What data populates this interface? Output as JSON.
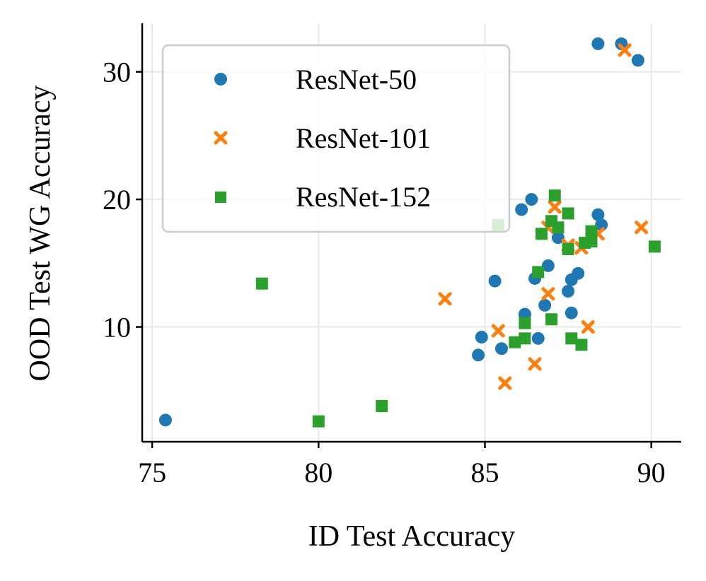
{
  "chart_data": {
    "type": "scatter",
    "title": "",
    "xlabel": "ID Test Accuracy",
    "ylabel": "OOD Test WG Accuracy",
    "xlim": [
      74.7,
      90.9
    ],
    "ylim": [
      1.0,
      33.8
    ],
    "xticks": [
      75,
      80,
      85,
      90
    ],
    "yticks": [
      10,
      20,
      30
    ],
    "grid": true,
    "legend_position": "upper-left",
    "series": [
      {
        "name": "ResNet-50",
        "color": "#1f77b4",
        "marker": "circle",
        "points": [
          [
            75.4,
            2.7
          ],
          [
            84.8,
            7.8
          ],
          [
            84.9,
            9.2
          ],
          [
            85.3,
            13.6
          ],
          [
            85.5,
            8.3
          ],
          [
            86.1,
            19.2
          ],
          [
            86.2,
            11.0
          ],
          [
            86.4,
            20.0
          ],
          [
            86.5,
            13.8
          ],
          [
            86.6,
            9.1
          ],
          [
            86.8,
            11.7
          ],
          [
            86.9,
            14.8
          ],
          [
            87.2,
            17.0
          ],
          [
            87.5,
            12.8
          ],
          [
            87.6,
            13.7
          ],
          [
            87.6,
            11.1
          ],
          [
            87.8,
            14.2
          ],
          [
            88.4,
            18.8
          ],
          [
            88.5,
            18.0
          ],
          [
            88.4,
            32.2
          ],
          [
            89.1,
            32.2
          ],
          [
            89.6,
            30.9
          ]
        ]
      },
      {
        "name": "ResNet-101",
        "color": "#ff7f0e",
        "marker": "x",
        "points": [
          [
            83.8,
            12.2
          ],
          [
            85.4,
            9.7
          ],
          [
            85.6,
            5.6
          ],
          [
            86.5,
            7.1
          ],
          [
            86.9,
            17.8
          ],
          [
            86.9,
            12.6
          ],
          [
            87.1,
            19.4
          ],
          [
            87.5,
            16.4
          ],
          [
            87.9,
            16.2
          ],
          [
            88.1,
            10.0
          ],
          [
            88.4,
            17.3
          ],
          [
            89.2,
            31.7
          ],
          [
            89.7,
            17.8
          ]
        ]
      },
      {
        "name": "ResNet-152",
        "color": "#2ca02c",
        "marker": "square",
        "points": [
          [
            78.3,
            13.4
          ],
          [
            80.0,
            2.6
          ],
          [
            81.9,
            3.8
          ],
          [
            85.4,
            18.0
          ],
          [
            85.9,
            8.8
          ],
          [
            86.2,
            9.1
          ],
          [
            86.2,
            10.3
          ],
          [
            86.6,
            14.3
          ],
          [
            86.7,
            17.3
          ],
          [
            87.0,
            10.6
          ],
          [
            87.0,
            18.3
          ],
          [
            87.1,
            20.3
          ],
          [
            87.2,
            17.8
          ],
          [
            87.5,
            18.9
          ],
          [
            87.5,
            16.1
          ],
          [
            87.6,
            9.1
          ],
          [
            87.9,
            8.6
          ],
          [
            88.0,
            16.6
          ],
          [
            88.2,
            16.7
          ],
          [
            88.2,
            17.5
          ],
          [
            90.1,
            16.3
          ]
        ]
      }
    ]
  }
}
